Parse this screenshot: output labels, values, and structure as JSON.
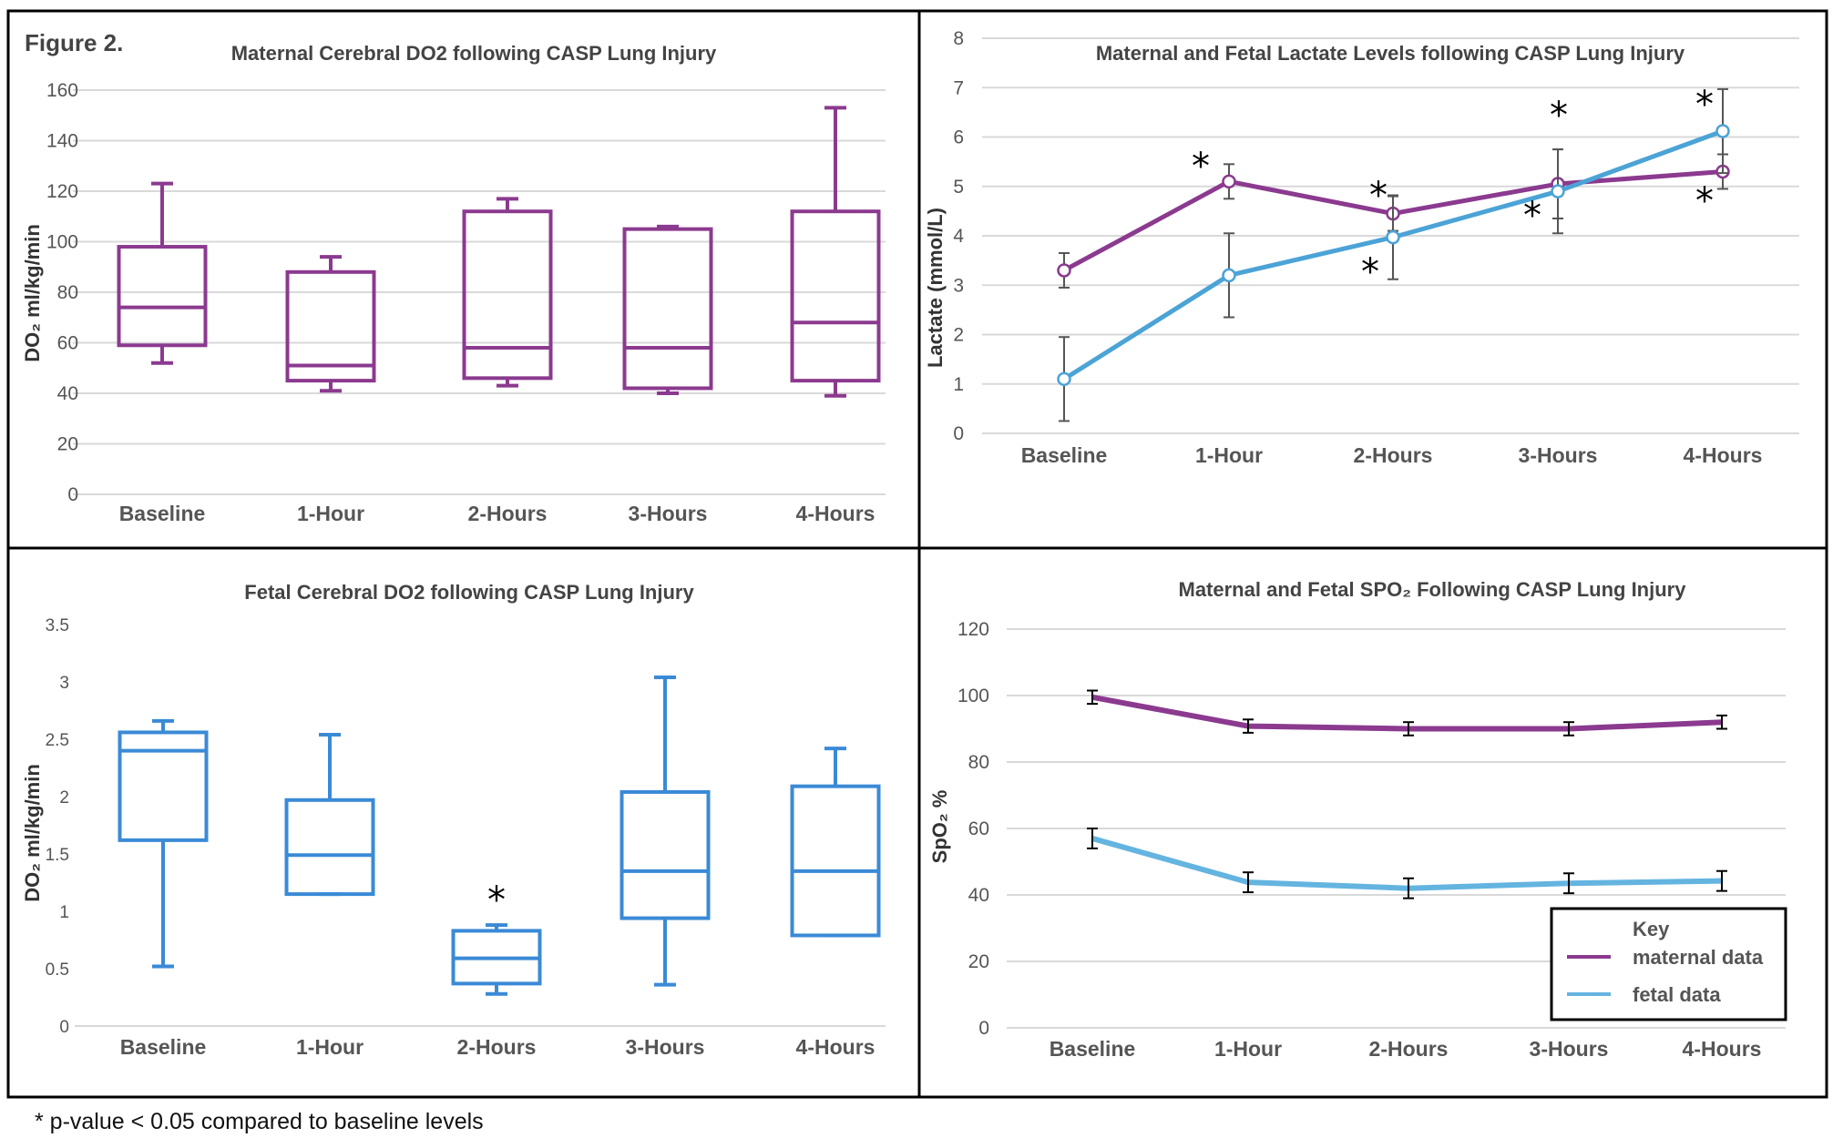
{
  "figure": {
    "label": "Figure 2.",
    "footnote": "* p-value < 0.05 compared to baseline levels"
  },
  "colors": {
    "maternal": "#8B3A8F",
    "fetal": "#4BA3D6",
    "fetal_box": "#3A8AD6",
    "grid": "#D9D9D9",
    "error": "#555555"
  },
  "chart_data": [
    {
      "type": "box",
      "title": "Maternal Cerebral DO2 following CASP Lung Injury",
      "ylabel": "DO₂ ml/kg/min",
      "ylim": [
        0,
        160
      ],
      "yticks": [
        0,
        20,
        40,
        60,
        80,
        100,
        120,
        140,
        160
      ],
      "categories": [
        "Baseline",
        "1-Hour",
        "2-Hours",
        "3-Hours",
        "4-Hours"
      ],
      "boxes": [
        {
          "min": 52,
          "q1": 59,
          "median": 74,
          "q3": 98,
          "max": 123
        },
        {
          "min": 41,
          "q1": 45,
          "median": 51,
          "q3": 88,
          "max": 94
        },
        {
          "min": 43,
          "q1": 46,
          "median": 58,
          "q3": 112,
          "max": 117
        },
        {
          "min": 40,
          "q1": 42,
          "median": 58,
          "q3": 105,
          "max": 106
        },
        {
          "min": 39,
          "q1": 45,
          "median": 68,
          "q3": 112,
          "max": 153
        }
      ],
      "color": "#8B3A8F"
    },
    {
      "type": "line",
      "title": "Maternal and Fetal Lactate Levels following CASP Lung Injury",
      "ylabel": "Lactate (mmol/L)",
      "ylim": [
        0,
        8
      ],
      "yticks": [
        0,
        1,
        2,
        3,
        4,
        5,
        6,
        7,
        8
      ],
      "categories": [
        "Baseline",
        "1-Hour",
        "2-Hours",
        "3-Hours",
        "4-Hours"
      ],
      "series": [
        {
          "values": [
            3.3,
            5.1,
            4.45,
            5.05,
            5.3
          ],
          "errors": [
            0.35,
            0.35,
            0.35,
            0.7,
            0.35
          ],
          "significant": [
            false,
            true,
            true,
            true,
            true
          ],
          "color": "#8B3A8F"
        },
        {
          "values": [
            1.1,
            3.2,
            3.97,
            4.9,
            6.12
          ],
          "errors": [
            0.85,
            0.85,
            0.85,
            0.85,
            0.85
          ],
          "significant": [
            false,
            false,
            true,
            true,
            true
          ],
          "color": "#4BA3D6"
        }
      ],
      "significance_mark": "*"
    },
    {
      "type": "box",
      "title": "Fetal Cerebral DO2 following CASP Lung Injury",
      "ylabel": "DO₂ ml/kg/min",
      "ylim": [
        0,
        3.5
      ],
      "yticks": [
        "0",
        "0.5",
        "1",
        "1.5",
        "2",
        "2.5",
        "3",
        "3.5"
      ],
      "categories": [
        "Baseline",
        "1-Hour",
        "2-Hours",
        "3-Hours",
        "4-Hours"
      ],
      "boxes": [
        {
          "min": 0.52,
          "q1": 1.62,
          "median": 2.4,
          "q3": 2.56,
          "max": 2.66
        },
        {
          "min": 1.15,
          "q1": 1.15,
          "median": 1.49,
          "q3": 1.97,
          "max": 2.54
        },
        {
          "min": 0.28,
          "q1": 0.37,
          "median": 0.59,
          "q3": 0.83,
          "max": 0.88
        },
        {
          "min": 0.36,
          "q1": 0.94,
          "median": 1.35,
          "q3": 2.04,
          "max": 3.04
        },
        {
          "min": 0.79,
          "q1": 0.79,
          "median": 1.35,
          "q3": 2.09,
          "max": 2.42
        }
      ],
      "significant": [
        false,
        false,
        true,
        false,
        false
      ],
      "significance_mark": "*",
      "color": "#3A8AD6"
    },
    {
      "type": "line",
      "title": "Maternal and Fetal SPO₂ Following CASP Lung Injury",
      "ylabel": "SpO₂ %",
      "ylim": [
        0,
        120
      ],
      "yticks": [
        0,
        20,
        40,
        60,
        80,
        100,
        120
      ],
      "categories": [
        "Baseline",
        "1-Hour",
        "2-Hours",
        "3-Hours",
        "4-Hours"
      ],
      "series": [
        {
          "name": "maternal data",
          "values": [
            99.5,
            90.8,
            90.0,
            90.0,
            92.0
          ],
          "errors": [
            2,
            2,
            2,
            2,
            2
          ],
          "color": "#8B3A8F"
        },
        {
          "name": "fetal data",
          "values": [
            57,
            43.8,
            42,
            43.5,
            44.2
          ],
          "errors": [
            3,
            3,
            3,
            3,
            3
          ],
          "color": "#64B4E0"
        }
      ],
      "legend": {
        "title": "Key",
        "placement": "bottom-right"
      }
    }
  ]
}
